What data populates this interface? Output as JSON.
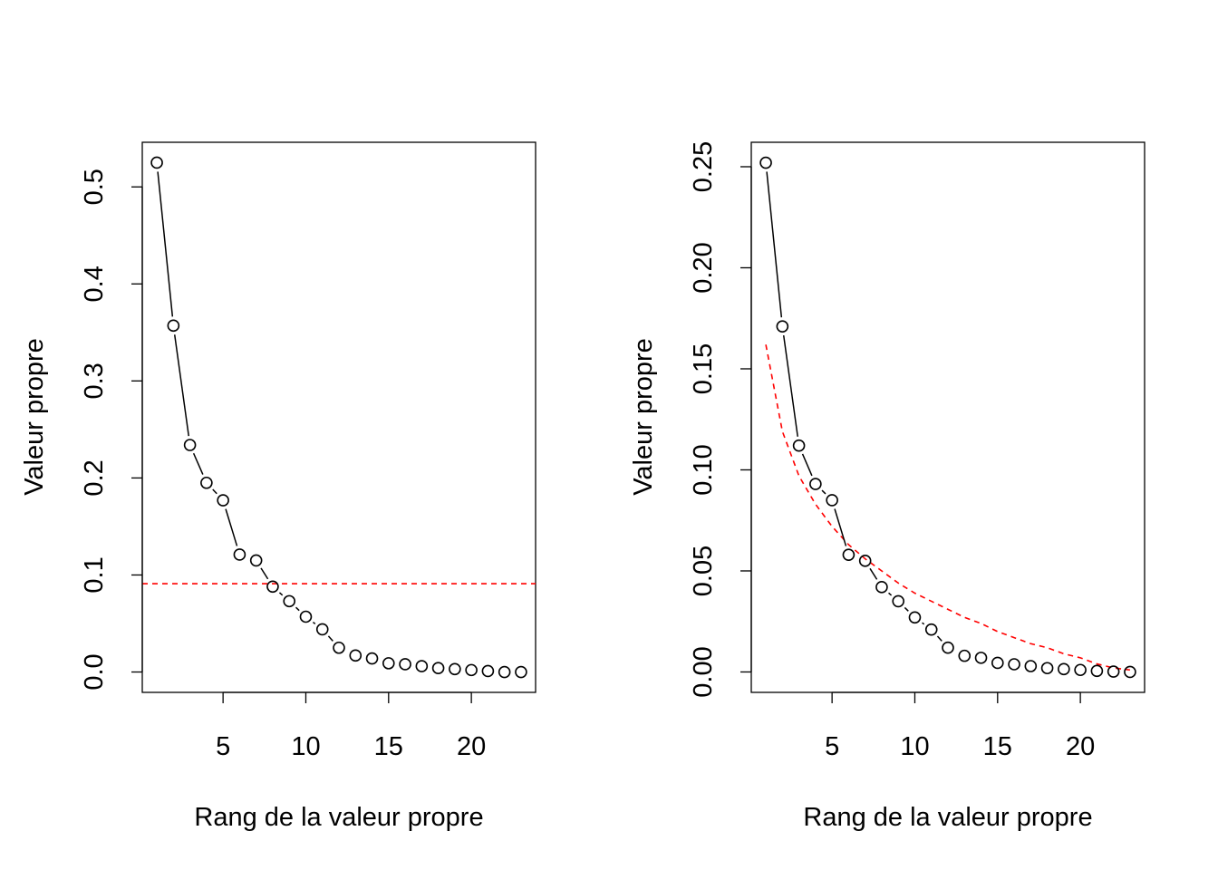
{
  "chart_data": [
    {
      "type": "line",
      "xlabel": "Rang de la valeur propre",
      "ylabel": "Valeur propre",
      "xlim": [
        0.12,
        23.88
      ],
      "ylim": [
        -0.021,
        0.546
      ],
      "xticks": [
        5,
        10,
        15,
        20
      ],
      "yticks": [
        0.0,
        0.1,
        0.2,
        0.3,
        0.4,
        0.5
      ],
      "ytick_labels": [
        "0.0",
        "0.1",
        "0.2",
        "0.3",
        "0.4",
        "0.5"
      ],
      "grid": false,
      "series": [
        {
          "style": "points-and-lines",
          "color": "#000000",
          "x": [
            1,
            2,
            3,
            4,
            5,
            6,
            7,
            8,
            9,
            10,
            11,
            12,
            13,
            14,
            15,
            16,
            17,
            18,
            19,
            20,
            21,
            22,
            23
          ],
          "y": [
            0.525,
            0.357,
            0.234,
            0.195,
            0.177,
            0.121,
            0.115,
            0.088,
            0.073,
            0.057,
            0.044,
            0.025,
            0.017,
            0.014,
            0.009,
            0.008,
            0.006,
            0.004,
            0.003,
            0.002,
            0.001,
            0.0,
            0.0
          ]
        }
      ],
      "reference_line": {
        "kind": "horizontal",
        "y": 0.091,
        "color": "#ff0000",
        "style": "dashed"
      }
    },
    {
      "type": "line",
      "xlabel": "Rang de la valeur propre",
      "ylabel": "Valeur propre",
      "xlim": [
        0.12,
        23.88
      ],
      "ylim": [
        -0.0101,
        0.2621
      ],
      "xticks": [
        5,
        10,
        15,
        20
      ],
      "yticks": [
        0.0,
        0.05,
        0.1,
        0.15,
        0.2,
        0.25
      ],
      "ytick_labels": [
        "0.00",
        "0.05",
        "0.10",
        "0.15",
        "0.20",
        "0.25"
      ],
      "grid": false,
      "series": [
        {
          "style": "points-and-lines",
          "color": "#000000",
          "x": [
            1,
            2,
            3,
            4,
            5,
            6,
            7,
            8,
            9,
            10,
            11,
            12,
            13,
            14,
            15,
            16,
            17,
            18,
            19,
            20,
            21,
            22,
            23
          ],
          "y": [
            0.252,
            0.171,
            0.112,
            0.093,
            0.085,
            0.058,
            0.055,
            0.042,
            0.035,
            0.027,
            0.021,
            0.012,
            0.008,
            0.007,
            0.0045,
            0.0038,
            0.0029,
            0.0019,
            0.0014,
            0.001,
            0.0005,
            0.0002,
            0.0
          ]
        }
      ],
      "reference_curve": {
        "kind": "broken-stick",
        "color": "#ff0000",
        "style": "dashed",
        "x": [
          1,
          2,
          3,
          4,
          5,
          6,
          7,
          8,
          9,
          10,
          11,
          12,
          13,
          14,
          15,
          16,
          17,
          18,
          19,
          20,
          21,
          22,
          23
        ],
        "y": [
          0.162,
          0.119,
          0.097,
          0.083,
          0.072,
          0.063,
          0.056,
          0.05,
          0.044,
          0.039,
          0.035,
          0.031,
          0.027,
          0.024,
          0.02,
          0.017,
          0.014,
          0.012,
          0.009,
          0.007,
          0.004,
          0.002,
          0.001
        ]
      }
    }
  ]
}
